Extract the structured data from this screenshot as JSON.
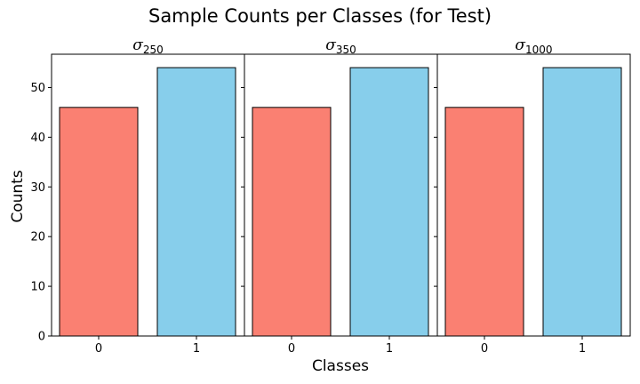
{
  "chart_data": {
    "type": "bar",
    "title": "Sample Counts per Classes (for Test)",
    "xlabel": "Classes",
    "ylabel": "Counts",
    "ylim": [
      0,
      56.7
    ],
    "yticks": [
      0,
      10,
      20,
      30,
      40,
      50
    ],
    "categories": [
      "0",
      "1"
    ],
    "bar_colors": [
      "#fa8072",
      "#87ceeb"
    ],
    "edge_color": "#000000",
    "grid": false,
    "shared_y": true,
    "panels": [
      {
        "title_symbol": "σ",
        "title_subscript": "250",
        "values": [
          46,
          54
        ]
      },
      {
        "title_symbol": "σ",
        "title_subscript": "350",
        "values": [
          46,
          54
        ]
      },
      {
        "title_symbol": "σ",
        "title_subscript": "1000",
        "values": [
          46,
          54
        ]
      }
    ]
  }
}
